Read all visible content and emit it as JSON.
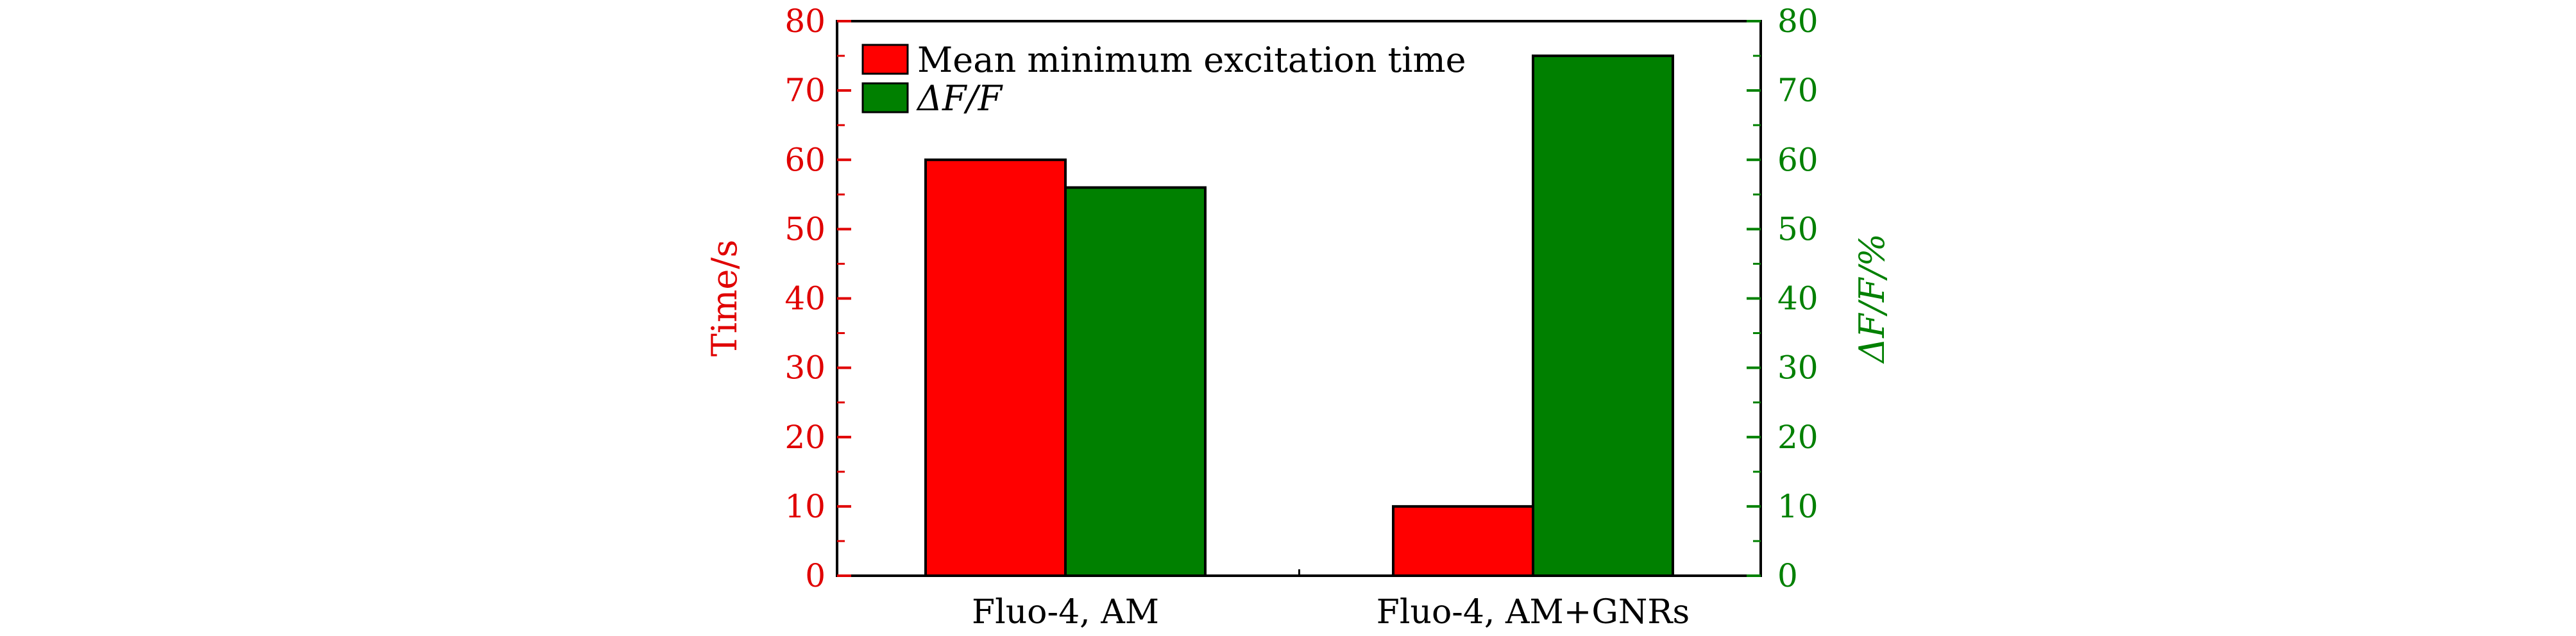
{
  "chart_data": {
    "type": "bar",
    "categories": [
      "Fluo-4, AM",
      "Fluo-4, AM+GNRs"
    ],
    "series": [
      {
        "name": "Mean minimum excitation time",
        "values": [
          60,
          10
        ],
        "color": "#ff0000",
        "axis": "left"
      },
      {
        "name": "ΔF/F",
        "values": [
          56,
          75
        ],
        "color": "#008000",
        "axis": "right"
      }
    ],
    "ylabel_left": "Time/s",
    "ylabel_right": "ΔF/F/%",
    "ylim_left": [
      0,
      80
    ],
    "ylim_right": [
      0,
      80
    ],
    "yticks_left": [
      "0",
      "10",
      "20",
      "30",
      "40",
      "50",
      "60",
      "70",
      "80"
    ],
    "yticks_right": [
      "0",
      "10",
      "20",
      "30",
      "40",
      "50",
      "60",
      "70",
      "80"
    ],
    "left_axis_color": "#e00000",
    "right_axis_color": "#008000",
    "legend_position": "top-left",
    "grid": false
  }
}
